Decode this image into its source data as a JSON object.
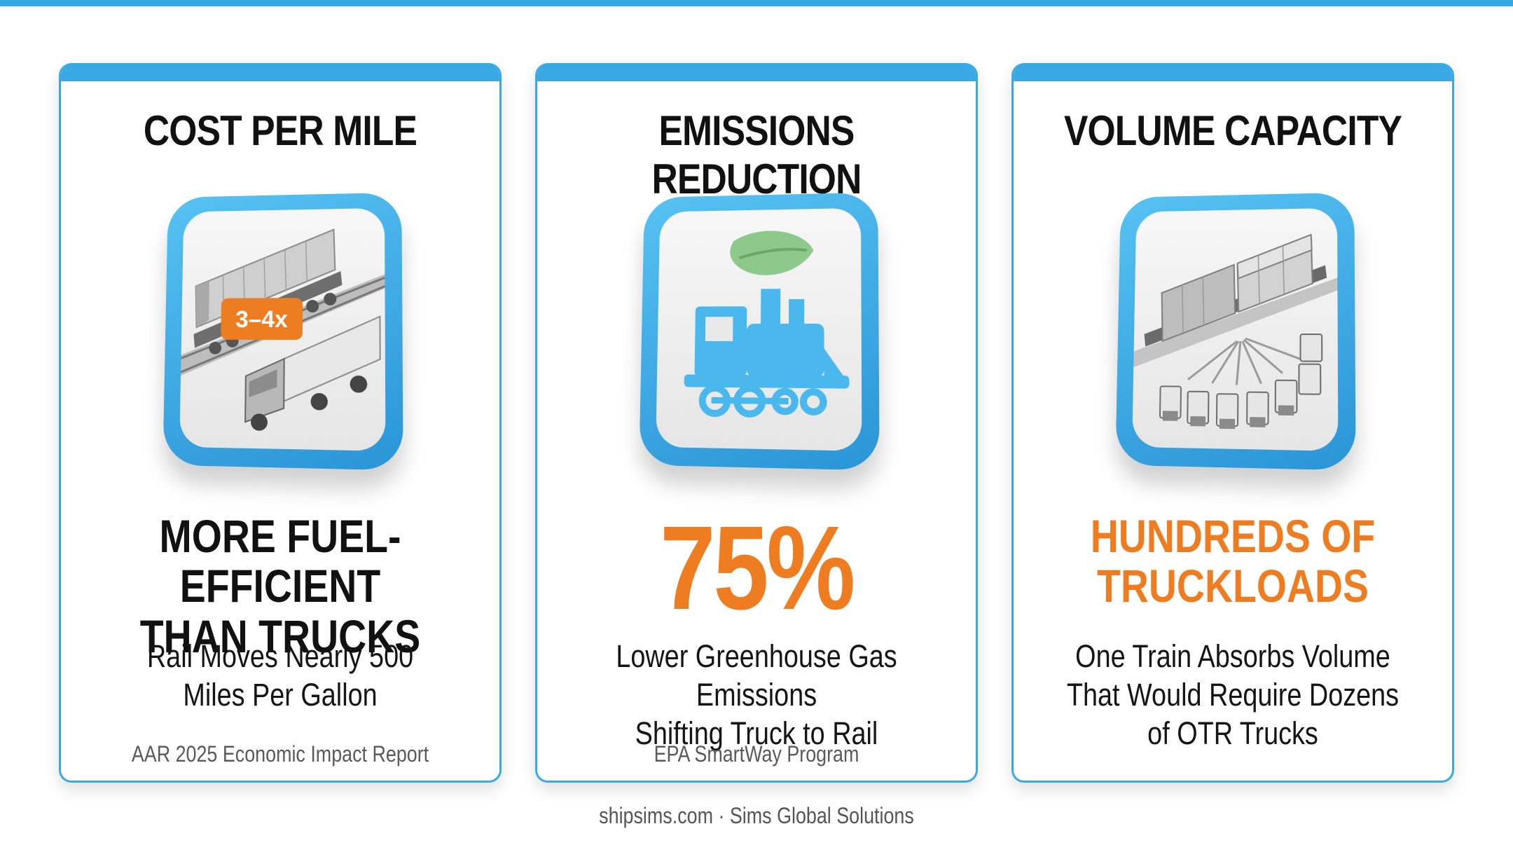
{
  "colors": {
    "accent_blue": "#3aa9e3",
    "accent_orange": "#ee7d22",
    "text_dark": "#111111",
    "text_muted": "#5a5a5a"
  },
  "cards": [
    {
      "title": "COST PER MILE",
      "icon": "train-and-truck-icon",
      "badge": "3–4x",
      "stat_lines": [
        "MORE FUEL-EFFICIENT",
        "THAN TRUCKS"
      ],
      "description_lines": [
        "Rail Moves Nearly 500",
        "Miles Per Gallon"
      ],
      "source": "AAR 2025 Economic Impact Report"
    },
    {
      "title": "EMISSIONS REDUCTION",
      "icon": "leaf-locomotive-icon",
      "stat": "75%",
      "description_lines": [
        "Lower Greenhouse Gas Emissions",
        "Shifting Truck to Rail"
      ],
      "source": "EPA SmartWay Program"
    },
    {
      "title": "VOLUME CAPACITY",
      "icon": "train-many-trucks-icon",
      "stat_lines": [
        "HUNDREDS OF",
        "TRUCKLOADS"
      ],
      "description_lines": [
        "One Train Absorbs Volume",
        "That Would Require Dozens",
        "of OTR Trucks"
      ],
      "source": ""
    }
  ],
  "footer": "shipsims.com · Sims Global Solutions"
}
